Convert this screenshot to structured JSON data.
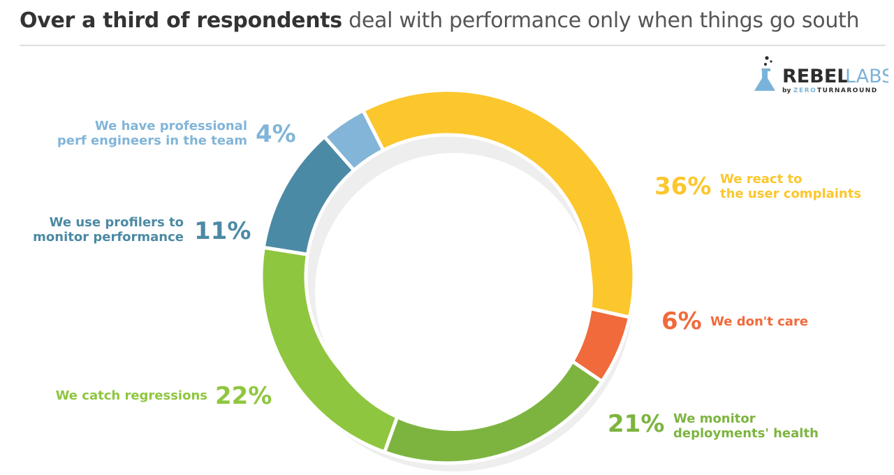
{
  "header": {
    "title_bold": "Over a third of respondents",
    "title_light": "deal with performance only when things go south"
  },
  "logo": {
    "brand_left": "REBEL",
    "brand_right": "LABS",
    "byline_by": "by",
    "byline_zero": "ZERO",
    "byline_rest": "TURNAROUND"
  },
  "chart_data": {
    "type": "pie",
    "style": "donut",
    "start": "top",
    "direction": "clockwise",
    "slices": [
      {
        "label_lines": [
          "We react to",
          "the user complaints"
        ],
        "value": 36,
        "value_text": "36%",
        "color": "#fcc62d"
      },
      {
        "label_lines": [
          "We don't care"
        ],
        "value": 6,
        "value_text": "6%",
        "color": "#f06a3b"
      },
      {
        "label_lines": [
          "We monitor",
          "deployments' health"
        ],
        "value": 21,
        "value_text": "21%",
        "color": "#7db43f"
      },
      {
        "label_lines": [
          "We catch regressions"
        ],
        "value": 22,
        "value_text": "22%",
        "color": "#8fc63f"
      },
      {
        "label_lines": [
          "We use profilers to",
          "monitor performance"
        ],
        "value": 11,
        "value_text": "11%",
        "color": "#4b8aa4"
      },
      {
        "label_lines": [
          "We have professional",
          "perf engineers in the team"
        ],
        "value": 4,
        "value_text": "4%",
        "color": "#82b5d8"
      }
    ]
  }
}
